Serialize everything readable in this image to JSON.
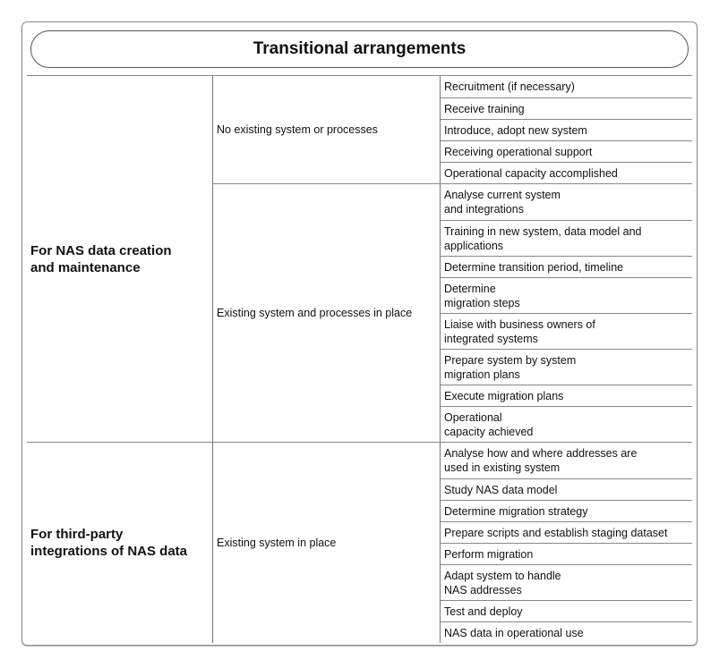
{
  "title": "Transitional arrangements",
  "groups": [
    {
      "label": "For NAS data creation\nand maintenance",
      "subgroups": [
        {
          "label": "No existing system or processes",
          "steps": [
            "Recruitment (if necessary)",
            "Receive training",
            "Introduce, adopt new system",
            "Receiving operational support",
            "Operational capacity accomplished"
          ]
        },
        {
          "label": "Existing system and processes in place",
          "steps": [
            "Analyse current system\nand integrations",
            "Training in new system, data model and\napplications",
            "Determine transition period, timeline",
            "Determine\nmigration steps",
            "Liaise with business owners of\nintegrated systems",
            "Prepare system by system\nmigration plans",
            "Execute migration plans",
            "Operational\ncapacity achieved"
          ]
        }
      ]
    },
    {
      "label": "For third-party\nintegrations of NAS data",
      "subgroups": [
        {
          "label": "Existing system in place",
          "steps": [
            "Analyse how and where addresses are\nused in existing system",
            "Study NAS data model",
            "Determine migration strategy",
            "Prepare scripts and establish staging dataset",
            "Perform migration",
            "Adapt system to handle\nNAS addresses",
            "Test and deploy",
            "NAS data in operational use"
          ]
        }
      ]
    }
  ]
}
